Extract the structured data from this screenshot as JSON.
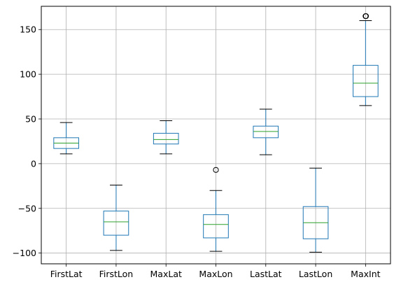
{
  "chart_data": {
    "type": "box",
    "title": "",
    "xlabel": "",
    "ylabel": "",
    "ylim": [
      -112,
      176
    ],
    "yticks": [
      -100,
      -50,
      0,
      50,
      100,
      150
    ],
    "grid": true,
    "colors": {
      "box": "#1f77b4",
      "median": "#2ca02c",
      "whisker": "#1f77b4",
      "cap": "#000000",
      "grid": "#b0b0b0"
    },
    "categories": [
      "FirstLat",
      "FirstLon",
      "MaxLat",
      "MaxLon",
      "LastLat",
      "LastLon",
      "MaxInt"
    ],
    "boxes": [
      {
        "name": "FirstLat",
        "whislo": 11,
        "q1": 17,
        "med": 23,
        "q3": 29,
        "whishi": 46,
        "fliers": []
      },
      {
        "name": "FirstLon",
        "whislo": -97,
        "q1": -80,
        "med": -65,
        "q3": -53,
        "whishi": -24,
        "fliers": []
      },
      {
        "name": "MaxLat",
        "whislo": 11,
        "q1": 22,
        "med": 27,
        "q3": 34,
        "whishi": 48,
        "fliers": []
      },
      {
        "name": "MaxLon",
        "whislo": -98,
        "q1": -83,
        "med": -68,
        "q3": -57,
        "whishi": -30,
        "fliers": [
          -7
        ]
      },
      {
        "name": "LastLat",
        "whislo": 10,
        "q1": 29,
        "med": 36,
        "q3": 42,
        "whishi": 61,
        "fliers": []
      },
      {
        "name": "LastLon",
        "whislo": -99,
        "q1": -84,
        "med": -66,
        "q3": -48,
        "whishi": -5,
        "fliers": []
      },
      {
        "name": "MaxInt",
        "whislo": 65,
        "q1": 75,
        "med": 90,
        "q3": 110,
        "whishi": 160,
        "fliers": [
          165,
          165
        ]
      }
    ]
  }
}
